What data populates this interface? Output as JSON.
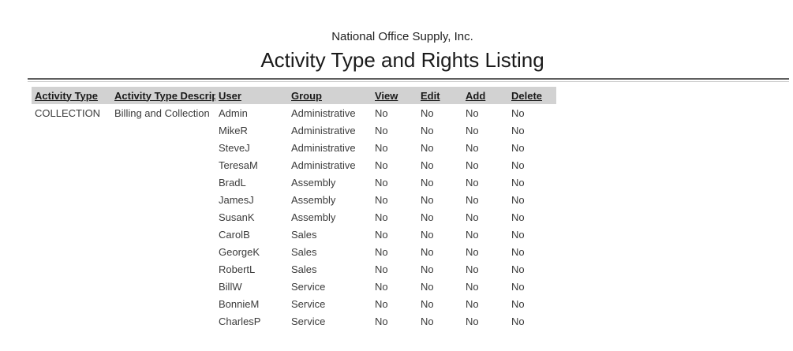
{
  "report": {
    "company_name": "National Office Supply, Inc.",
    "title": "Activity Type and Rights Listing"
  },
  "table": {
    "columns": [
      "Activity Type",
      "Activity Type Description",
      "User",
      "Group",
      "View",
      "Edit",
      "Add",
      "Delete"
    ],
    "rows": [
      {
        "activity_type": "COLLECTION",
        "description": "Billing and Collection",
        "user": "Admin",
        "group": "Administrative",
        "view": "No",
        "edit": "No",
        "add": "No",
        "delete": "No"
      },
      {
        "activity_type": "",
        "description": "",
        "user": "MikeR",
        "group": "Administrative",
        "view": "No",
        "edit": "No",
        "add": "No",
        "delete": "No"
      },
      {
        "activity_type": "",
        "description": "",
        "user": "SteveJ",
        "group": "Administrative",
        "view": "No",
        "edit": "No",
        "add": "No",
        "delete": "No"
      },
      {
        "activity_type": "",
        "description": "",
        "user": "TeresaM",
        "group": "Administrative",
        "view": "No",
        "edit": "No",
        "add": "No",
        "delete": "No"
      },
      {
        "activity_type": "",
        "description": "",
        "user": "BradL",
        "group": "Assembly",
        "view": "No",
        "edit": "No",
        "add": "No",
        "delete": "No"
      },
      {
        "activity_type": "",
        "description": "",
        "user": "JamesJ",
        "group": "Assembly",
        "view": "No",
        "edit": "No",
        "add": "No",
        "delete": "No"
      },
      {
        "activity_type": "",
        "description": "",
        "user": "SusanK",
        "group": "Assembly",
        "view": "No",
        "edit": "No",
        "add": "No",
        "delete": "No"
      },
      {
        "activity_type": "",
        "description": "",
        "user": "CarolB",
        "group": "Sales",
        "view": "No",
        "edit": "No",
        "add": "No",
        "delete": "No"
      },
      {
        "activity_type": "",
        "description": "",
        "user": "GeorgeK",
        "group": "Sales",
        "view": "No",
        "edit": "No",
        "add": "No",
        "delete": "No"
      },
      {
        "activity_type": "",
        "description": "",
        "user": "RobertL",
        "group": "Sales",
        "view": "No",
        "edit": "No",
        "add": "No",
        "delete": "No"
      },
      {
        "activity_type": "",
        "description": "",
        "user": "BillW",
        "group": "Service",
        "view": "No",
        "edit": "No",
        "add": "No",
        "delete": "No"
      },
      {
        "activity_type": "",
        "description": "",
        "user": "BonnieM",
        "group": "Service",
        "view": "No",
        "edit": "No",
        "add": "No",
        "delete": "No"
      },
      {
        "activity_type": "",
        "description": "",
        "user": "CharlesP",
        "group": "Service",
        "view": "No",
        "edit": "No",
        "add": "No",
        "delete": "No"
      }
    ]
  },
  "colors": {
    "header_band": "#d2d2d2",
    "rule_dark": "#5f5f5f",
    "rule_light": "#c9c9c9",
    "text": "#3b3b3b"
  }
}
